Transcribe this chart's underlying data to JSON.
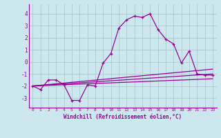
{
  "xlabel": "Windchill (Refroidissement éolien,°C)",
  "bg_color": "#cce8ee",
  "line_color": "#990099",
  "grid_color": "#aacccc",
  "xlim": [
    -0.5,
    23.5
  ],
  "ylim": [
    -3.8,
    4.8
  ],
  "xticks": [
    0,
    1,
    2,
    3,
    4,
    5,
    6,
    7,
    8,
    9,
    10,
    11,
    12,
    13,
    14,
    15,
    16,
    17,
    18,
    19,
    20,
    21,
    22,
    23
  ],
  "yticks": [
    -3,
    -2,
    -1,
    0,
    1,
    2,
    3,
    4
  ],
  "main_series": {
    "x": [
      0,
      1,
      2,
      3,
      4,
      5,
      6,
      7,
      8,
      9,
      10,
      11,
      12,
      13,
      14,
      15,
      16,
      17,
      18,
      19,
      20,
      21,
      22,
      23
    ],
    "y": [
      -2.0,
      -2.3,
      -1.5,
      -1.5,
      -1.9,
      -3.2,
      -3.2,
      -1.9,
      -2.0,
      -0.1,
      0.7,
      2.8,
      3.5,
      3.8,
      3.7,
      4.0,
      2.7,
      1.9,
      1.5,
      -0.1,
      0.9,
      -1.0,
      -1.1,
      -1.1
    ]
  },
  "straight_lines": [
    {
      "x": [
        0,
        23
      ],
      "y": [
        -2.0,
        -0.6
      ]
    },
    {
      "x": [
        0,
        23
      ],
      "y": [
        -2.0,
        -1.0
      ]
    },
    {
      "x": [
        0,
        23
      ],
      "y": [
        -2.0,
        -1.4
      ]
    }
  ]
}
